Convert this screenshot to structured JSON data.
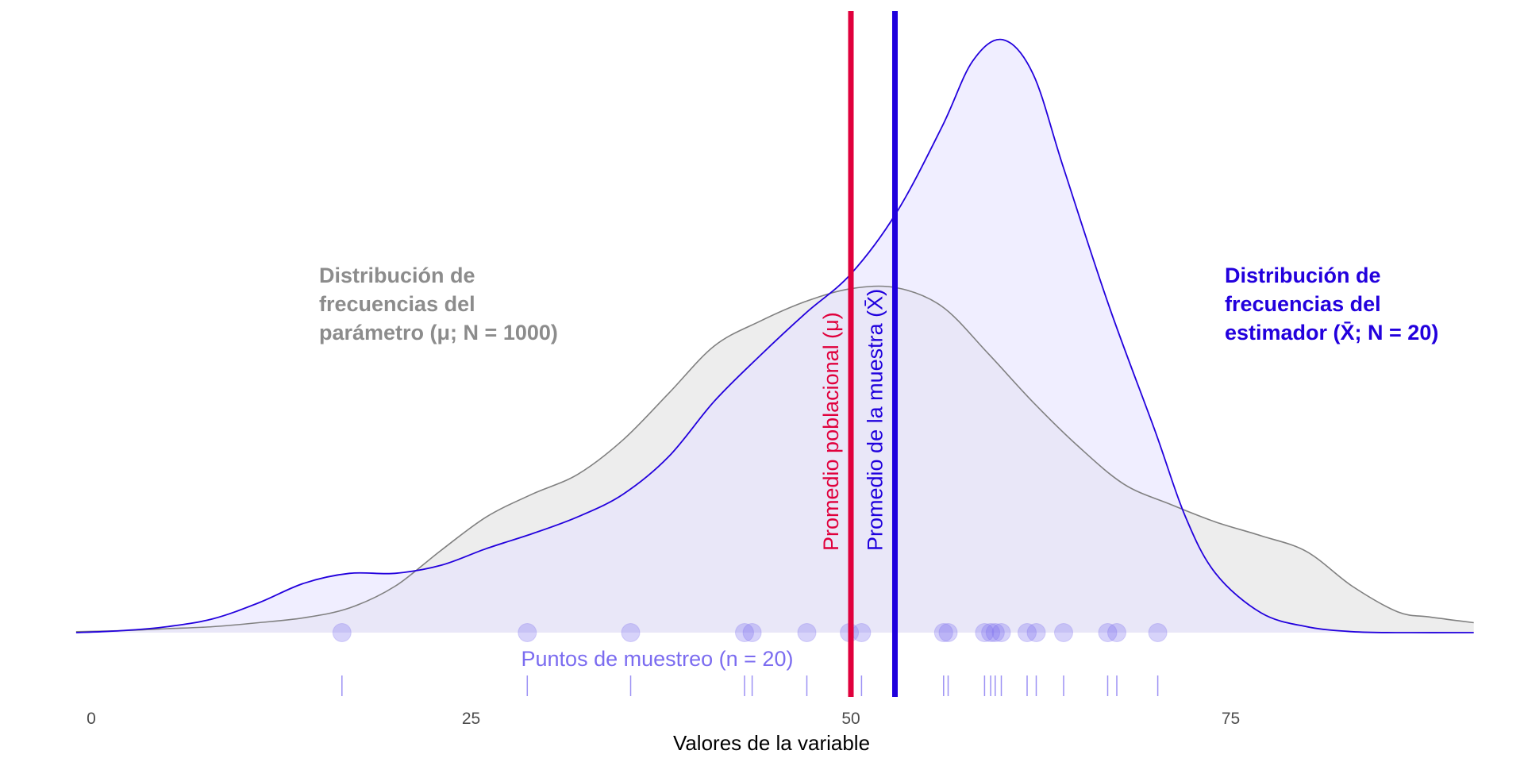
{
  "chart_data": {
    "type": "area",
    "xlabel": "Valores de la variable",
    "ylabel": "",
    "xlim": [
      -1,
      91
    ],
    "x_ticks": [
      "0",
      "25",
      "50",
      "75"
    ],
    "x_tick_values": [
      0,
      25,
      50,
      75
    ],
    "grid": false,
    "series": [
      {
        "name": "Distribución de frecuencias del parámetro (μ; N = 1000)",
        "color": "#808080",
        "fill": "#ebebeb",
        "x": [
          -1,
          2,
          5,
          8,
          11,
          14,
          17,
          20,
          23,
          26,
          29,
          32,
          35,
          38,
          41,
          44,
          47,
          50,
          53,
          56,
          59,
          62,
          65,
          68,
          71,
          74,
          77,
          80,
          83,
          86,
          88,
          90,
          91
        ],
        "y": [
          0.001,
          0.002,
          0.004,
          0.006,
          0.01,
          0.015,
          0.025,
          0.047,
          0.083,
          0.117,
          0.14,
          0.16,
          0.195,
          0.242,
          0.29,
          0.315,
          0.335,
          0.348,
          0.349,
          0.33,
          0.283,
          0.233,
          0.188,
          0.15,
          0.13,
          0.112,
          0.098,
          0.082,
          0.047,
          0.021,
          0.016,
          0.012,
          0.01
        ]
      },
      {
        "name": "Distribución de frecuencias del estimador (X̄; N = 20)",
        "color": "#2200dd",
        "fill": "#e6e2ff",
        "x": [
          -1,
          2,
          5,
          8,
          11,
          14,
          17,
          20,
          23,
          26,
          29,
          32,
          35,
          38,
          41,
          44,
          47,
          50,
          53,
          56,
          58,
          60,
          62,
          64,
          67,
          70,
          72,
          74,
          77,
          80,
          83,
          86,
          91
        ],
        "y": [
          0.0,
          0.002,
          0.006,
          0.014,
          0.03,
          0.05,
          0.06,
          0.06,
          0.068,
          0.085,
          0.1,
          0.117,
          0.14,
          0.178,
          0.234,
          0.28,
          0.323,
          0.363,
          0.425,
          0.512,
          0.578,
          0.6,
          0.565,
          0.47,
          0.33,
          0.205,
          0.118,
          0.06,
          0.02,
          0.006,
          0.001,
          0.0,
          0.0
        ]
      }
    ],
    "vlines": [
      {
        "name": "Promedio poblacional (μ)",
        "x": 50,
        "color": "#e0003c"
      },
      {
        "name": "Promedio de la muestra (X̄)",
        "x": 52.9,
        "color": "#1f00dd"
      }
    ],
    "sample_points": {
      "label": "Puntos de muestreo (n = 20)",
      "color": "#7b6cf0",
      "values": [
        16.5,
        28.7,
        35.5,
        43.0,
        43.5,
        47.1,
        49.9,
        50.7,
        56.1,
        56.4,
        58.8,
        59.2,
        59.5,
        59.9,
        61.6,
        62.2,
        64.0,
        66.9,
        67.5,
        70.2
      ]
    },
    "annotations": [
      {
        "lines": [
          "Distribución de",
          "frecuencias del",
          "parámetro (μ; N = 1000)"
        ],
        "color": "#8c8c8c"
      },
      {
        "lines": [
          "Distribución de",
          "frecuencias del",
          "estimador (X̄; N = 20)"
        ],
        "color": "#2200dd"
      }
    ]
  }
}
